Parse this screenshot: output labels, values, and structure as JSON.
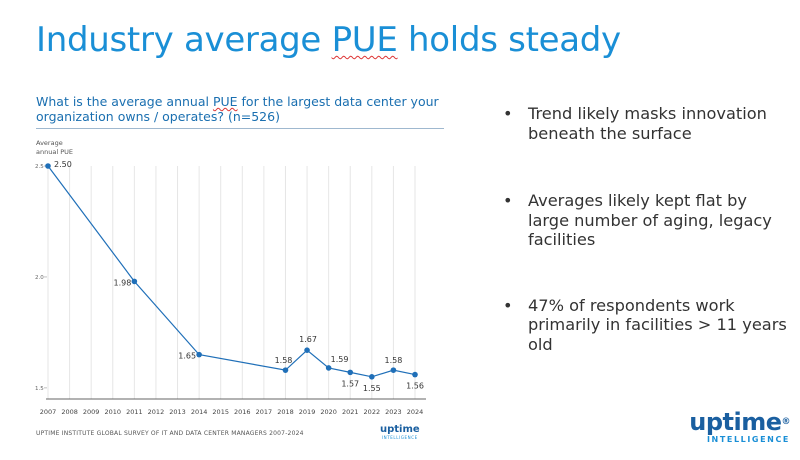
{
  "slide": {
    "title_before": "Industry average ",
    "title_squiggle": "PUE",
    "title_after": " holds steady"
  },
  "chart_panel": {
    "question_line1_before": "What is the average annual ",
    "question_line1_squiggle": "PUE",
    "question_line1_after": " for the largest data center your",
    "question_line2": "organization owns / operates? (n=526)",
    "source": "UPTIME INSTITUTE GLOBAL SURVEY OF IT AND DATA CENTER MANAGERS 2007-2024",
    "mini_logo_word": "uptime",
    "mini_logo_sub": "INTELLIGENCE"
  },
  "chart_data": {
    "type": "line",
    "ylabel_line1": "Average",
    "ylabel_line2": "annual PUE",
    "x": [
      "2007",
      "2008",
      "2009",
      "2010",
      "2011",
      "2012",
      "2013",
      "2014",
      "2015",
      "2016",
      "2017",
      "2018",
      "2019",
      "2020",
      "2021",
      "2022",
      "2023",
      "2024"
    ],
    "series": [
      {
        "points": [
          {
            "x": "2007",
            "y": 2.5,
            "label": "2.50"
          },
          {
            "x": "2011",
            "y": 1.98,
            "label": "1.98"
          },
          {
            "x": "2014",
            "y": 1.65,
            "label": "1.65"
          },
          {
            "x": "2018",
            "y": 1.58,
            "label": "1.58"
          },
          {
            "x": "2019",
            "y": 1.67,
            "label": "1.67"
          },
          {
            "x": "2020",
            "y": 1.59,
            "label": "1.59"
          },
          {
            "x": "2021",
            "y": 1.57,
            "label": "1.57"
          },
          {
            "x": "2022",
            "y": 1.55,
            "label": "1.55"
          },
          {
            "x": "2023",
            "y": 1.58,
            "label": "1.58"
          },
          {
            "x": "2024",
            "y": 1.56,
            "label": "1.56"
          }
        ]
      }
    ],
    "yticks": [
      {
        "value": 2.5,
        "label": "2.5"
      },
      {
        "value": 2.0,
        "label": "2.0"
      },
      {
        "value": 1.5,
        "label": "1.5"
      }
    ],
    "ylim": [
      1.45,
      2.5
    ],
    "grid": "vertical",
    "colors": {
      "line": "#1f6fb8",
      "grid": "#e6e6e6",
      "axis": "#333333"
    }
  },
  "bullets": [
    "Trend likely masks innovation beneath the surface",
    "Averages likely kept flat by large number of aging, legacy facilities",
    "47% of respondents work primarily in facilities > 11 years old"
  ],
  "brand": {
    "word": "uptime",
    "mark": "®",
    "sub": "INTELLIGENCE"
  }
}
